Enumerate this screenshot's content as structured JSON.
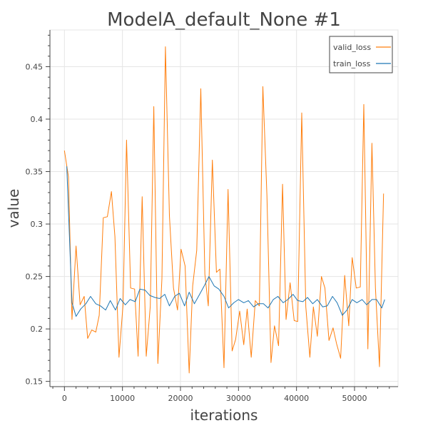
{
  "chart_data": {
    "type": "line",
    "title": "ModelA_default_None #1",
    "xlabel": "iterations",
    "ylabel": "value",
    "xlim": [
      -2500,
      57500
    ],
    "ylim": [
      0.145,
      0.485
    ],
    "x_ticks": [
      0,
      10000,
      20000,
      30000,
      40000,
      50000
    ],
    "y_ticks": [
      0.15,
      0.2,
      0.25,
      0.3,
      0.35,
      0.4,
      0.45
    ],
    "y_tick_labels": [
      "0.15",
      "0.2",
      "0.25",
      "0.3",
      "0.35",
      "0.4",
      "0.45"
    ],
    "grid": true,
    "legend_position": "top-right",
    "series": [
      {
        "name": "valid_loss",
        "color": "#ff7f0e",
        "x": [
          0,
          700,
          1300,
          2000,
          2700,
          3400,
          4000,
          4700,
          5400,
          6000,
          6700,
          7400,
          8100,
          8700,
          9400,
          10100,
          10700,
          11400,
          12100,
          12700,
          13400,
          14100,
          14800,
          15400,
          16100,
          16800,
          17400,
          18100,
          18800,
          19500,
          20100,
          20800,
          21500,
          22100,
          22800,
          23500,
          24200,
          24800,
          25500,
          26200,
          26800,
          27500,
          28200,
          28900,
          29500,
          30200,
          30900,
          31500,
          32200,
          32900,
          33600,
          34200,
          34900,
          35600,
          36200,
          36900,
          37600,
          38200,
          38900,
          39600,
          40200,
          40900,
          41600,
          42300,
          42900,
          43600,
          44300,
          44900,
          45600,
          46300,
          46900,
          47600,
          48300,
          49000,
          49600,
          50300,
          51000,
          51600,
          52300,
          53000,
          53600,
          54300,
          55000
        ],
        "values": [
          0.37,
          0.345,
          0.209,
          0.279,
          0.223,
          0.231,
          0.191,
          0.199,
          0.197,
          0.213,
          0.306,
          0.307,
          0.331,
          0.288,
          0.173,
          0.223,
          0.38,
          0.239,
          0.238,
          0.174,
          0.326,
          0.174,
          0.222,
          0.412,
          0.167,
          0.248,
          0.469,
          0.308,
          0.239,
          0.218,
          0.276,
          0.26,
          0.158,
          0.241,
          0.275,
          0.429,
          0.252,
          0.222,
          0.361,
          0.254,
          0.257,
          0.163,
          0.333,
          0.179,
          0.19,
          0.217,
          0.185,
          0.219,
          0.173,
          0.227,
          0.222,
          0.431,
          0.327,
          0.168,
          0.203,
          0.184,
          0.338,
          0.209,
          0.244,
          0.208,
          0.207,
          0.406,
          0.221,
          0.173,
          0.221,
          0.193,
          0.25,
          0.239,
          0.189,
          0.201,
          0.186,
          0.172,
          0.251,
          0.203,
          0.268,
          0.239,
          0.24,
          0.414,
          0.181,
          0.377,
          0.239,
          0.164,
          0.329
        ]
      },
      {
        "name": "train_loss",
        "color": "#1f77b4",
        "x": [
          400,
          1300,
          2000,
          2800,
          3700,
          4500,
          5400,
          6200,
          7100,
          7900,
          8800,
          9600,
          10500,
          11300,
          12200,
          13000,
          13900,
          14700,
          15600,
          16400,
          17300,
          18100,
          19000,
          19800,
          20700,
          21500,
          22400,
          23200,
          24100,
          24900,
          25800,
          26600,
          27500,
          28300,
          29200,
          30000,
          30900,
          31700,
          32600,
          33400,
          34300,
          35100,
          36000,
          36800,
          37700,
          38500,
          39400,
          40200,
          41100,
          41900,
          42800,
          43600,
          44500,
          45300,
          46200,
          47000,
          47900,
          48700,
          49600,
          50400,
          51300,
          52100,
          53000,
          53800,
          54700,
          55200
        ],
        "values": [
          0.355,
          0.225,
          0.212,
          0.219,
          0.224,
          0.231,
          0.224,
          0.222,
          0.218,
          0.227,
          0.218,
          0.229,
          0.223,
          0.228,
          0.226,
          0.238,
          0.237,
          0.232,
          0.23,
          0.229,
          0.233,
          0.222,
          0.231,
          0.234,
          0.222,
          0.235,
          0.224,
          0.232,
          0.241,
          0.25,
          0.241,
          0.238,
          0.231,
          0.22,
          0.225,
          0.228,
          0.225,
          0.227,
          0.221,
          0.224,
          0.224,
          0.22,
          0.228,
          0.231,
          0.225,
          0.228,
          0.233,
          0.227,
          0.226,
          0.23,
          0.224,
          0.228,
          0.221,
          0.222,
          0.231,
          0.225,
          0.213,
          0.218,
          0.228,
          0.225,
          0.228,
          0.223,
          0.228,
          0.228,
          0.22,
          0.228
        ]
      }
    ]
  }
}
